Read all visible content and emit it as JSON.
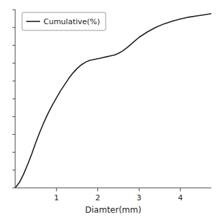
{
  "chart_data": {
    "type": "line",
    "xlabel": "Diamter(mm)",
    "x": [
      0.0,
      0.1,
      0.2,
      0.3,
      0.4,
      0.5,
      0.6,
      0.7,
      0.8,
      0.9,
      1.0,
      1.1,
      1.2,
      1.3,
      1.4,
      1.5,
      1.6,
      1.7,
      1.8,
      1.9,
      2.0,
      2.1,
      2.2,
      2.3,
      2.4,
      2.5,
      2.6,
      2.7,
      2.8,
      2.9,
      3.0,
      3.2,
      3.4,
      3.6,
      3.8,
      4.0,
      4.2,
      4.4,
      4.6,
      4.75
    ],
    "series": [
      {
        "name": "Cumulative(%)",
        "color": "#1a1a1a",
        "values": [
          0.0,
          3.0,
          7.5,
          13.0,
          19.0,
          25.5,
          31.5,
          37.0,
          42.0,
          46.5,
          50.5,
          54.5,
          58.0,
          61.5,
          64.5,
          67.0,
          69.0,
          70.5,
          71.5,
          72.0,
          72.5,
          73.0,
          73.5,
          74.0,
          74.5,
          75.5,
          76.8,
          78.5,
          80.5,
          82.5,
          84.5,
          87.5,
          90.0,
          92.0,
          93.5,
          94.8,
          95.8,
          96.5,
          97.2,
          97.8
        ]
      }
    ],
    "xlim": [
      0,
      4.75
    ],
    "ylim": [
      0,
      100
    ],
    "xticks": [
      1,
      2,
      3,
      4
    ],
    "yticks": [
      0,
      10,
      20,
      30,
      40,
      50,
      60,
      70,
      80,
      90,
      100
    ],
    "tick_labels": "x",
    "grid": false,
    "legend": "upper left"
  }
}
